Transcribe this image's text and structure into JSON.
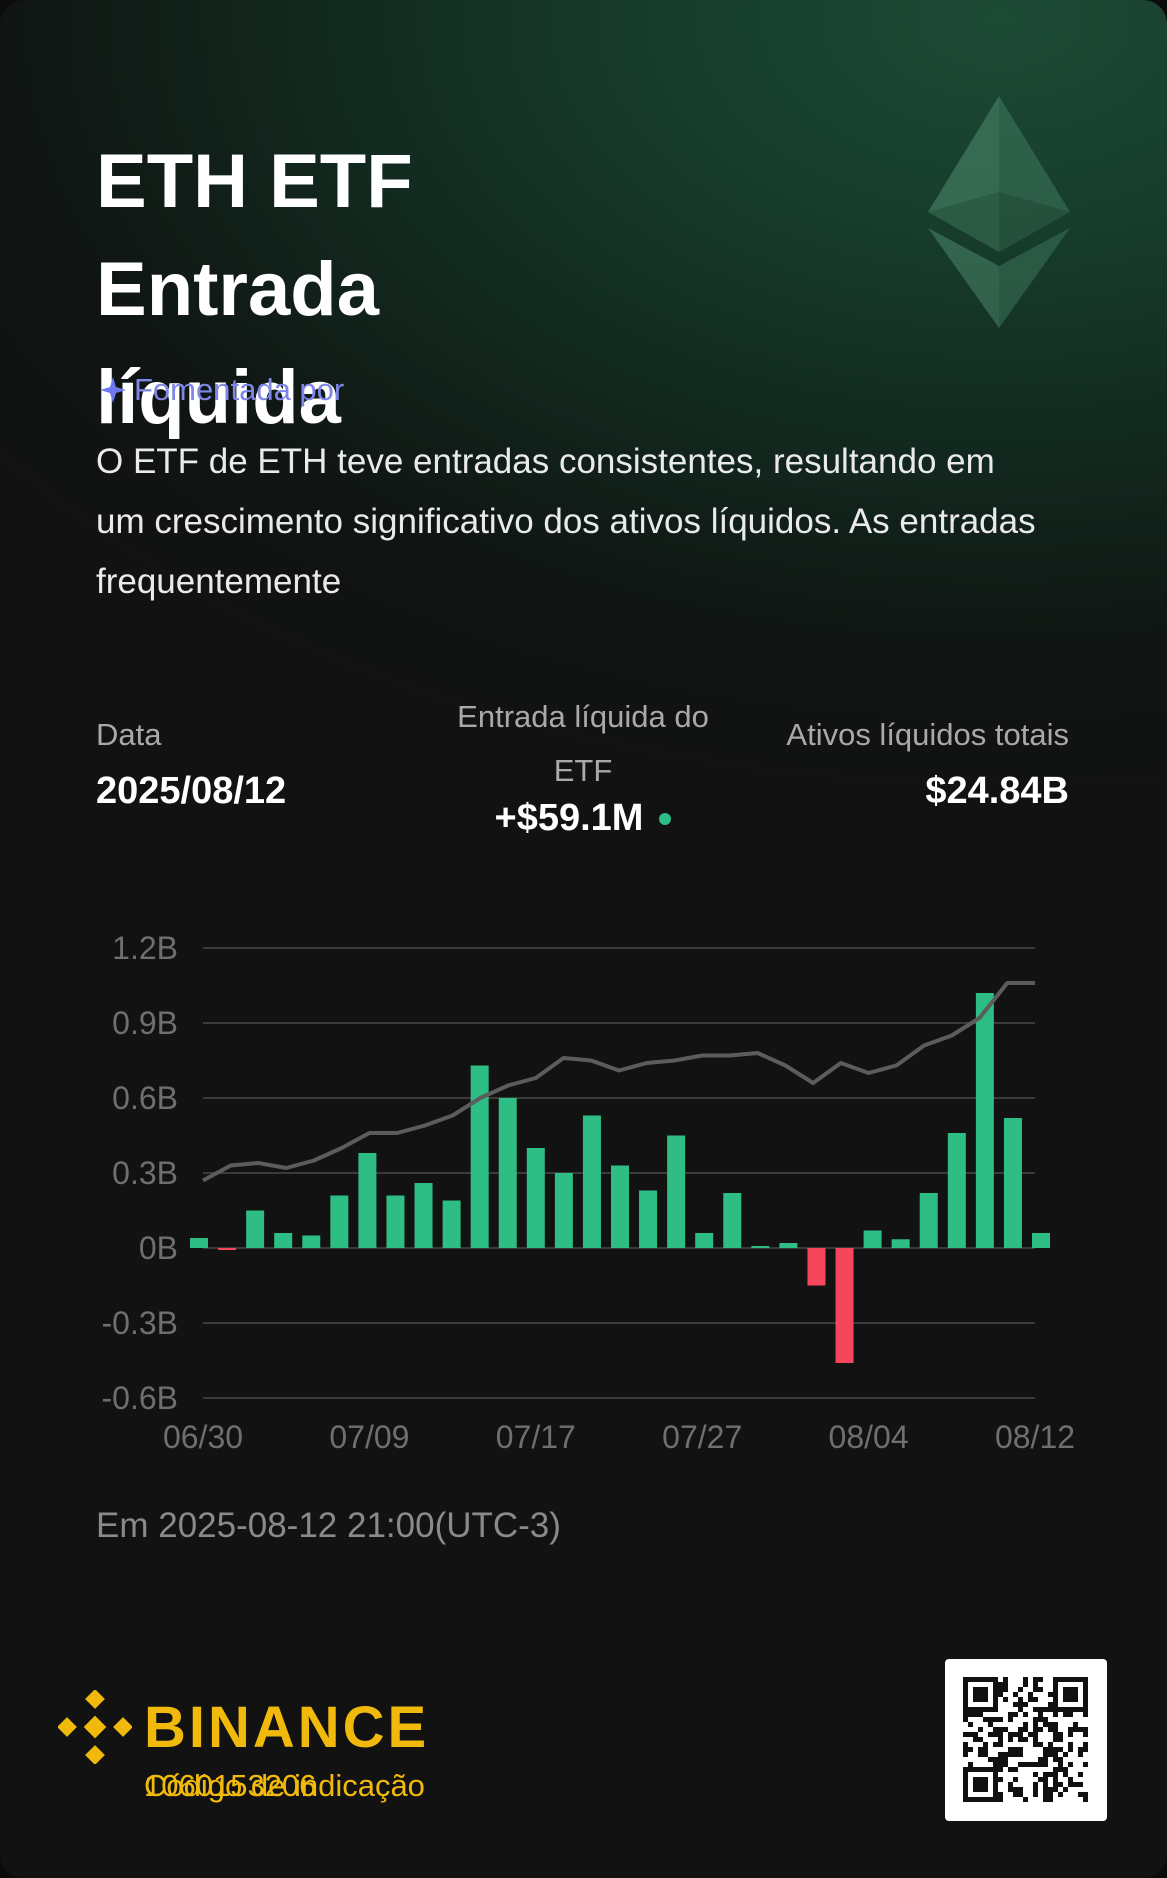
{
  "title_lines": [
    "ETH ETF",
    "Entrada",
    "líquida"
  ],
  "powered_by": "Fomentada por",
  "description": "O ETF de ETH teve entradas consistentes, resultando em um crescimento significativo dos ativos líquidos. As entradas frequentemente",
  "stats": {
    "date_label": "Data",
    "date_value": "2025/08/12",
    "inflow_label": "Entrada líquida do ETF",
    "inflow_value": "+$59.1M",
    "assets_label": "Ativos líquidos totais",
    "assets_value": "$24.84B"
  },
  "updated": "Em 2025-08-12 21:00(UTC-3)",
  "brand": {
    "name": "BINANCE",
    "code_label": "Código de indicação",
    "code_value": "1060153206"
  },
  "icons": {
    "eth": "ethereum-logo-icon",
    "powered": "sparkle-icon",
    "brand": "binance-diamond-icon",
    "qr": "qr-code-icon"
  },
  "colors": {
    "positive": "#2ebd85",
    "negative": "#f6465d",
    "line": "#5c5c5c",
    "accent": "#f0b90b",
    "powered": "#7f86e8"
  },
  "chart_data": {
    "type": "bar",
    "x_ticks": [
      "06/30",
      "07/09",
      "07/17",
      "07/27",
      "08/04",
      "08/12"
    ],
    "y_ticks": [
      "1.2B",
      "0.9B",
      "0.6B",
      "0.3B",
      "0B",
      "-0.3B",
      "-0.6B"
    ],
    "ylim": [
      -0.6,
      1.2
    ],
    "grid": true,
    "series": [
      {
        "type": "bar",
        "values": [
          0.04,
          -0.003,
          0.15,
          0.06,
          0.05,
          0.21,
          0.38,
          0.21,
          0.26,
          0.19,
          0.73,
          0.6,
          0.4,
          0.3,
          0.53,
          0.33,
          0.23,
          0.45,
          0.06,
          0.22,
          0.005,
          0.02,
          -0.15,
          -0.46,
          0.07,
          0.035,
          0.22,
          0.46,
          1.02,
          0.52,
          0.06
        ]
      },
      {
        "type": "line",
        "values": [
          0.27,
          0.33,
          0.34,
          0.32,
          0.35,
          0.4,
          0.46,
          0.46,
          0.49,
          0.53,
          0.6,
          0.65,
          0.68,
          0.76,
          0.75,
          0.71,
          0.74,
          0.75,
          0.77,
          0.77,
          0.78,
          0.73,
          0.66,
          0.74,
          0.7,
          0.73,
          0.81,
          0.85,
          0.92,
          1.06,
          1.06
        ]
      }
    ]
  }
}
